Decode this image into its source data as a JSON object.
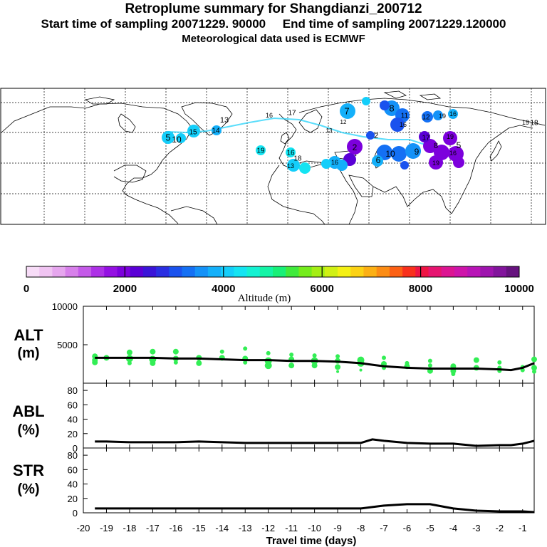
{
  "header": {
    "title": "Retroplume summary for Shangdianzi_200712",
    "sampling": "Start time of sampling 20071229. 90000     End time of sampling 20071229.120000",
    "met": "Meteorological data used is ECMWF"
  },
  "colors": {
    "scale": [
      "#f7dcf7",
      "#f0c4f2",
      "#e6a6ee",
      "#d780ea",
      "#c45ae8",
      "#ad30e6",
      "#9410e2",
      "#7c00dc",
      "#5a00d6",
      "#3a14d8",
      "#2a2ee2",
      "#1a52ee",
      "#1470f4",
      "#1492f8",
      "#14b0fa",
      "#14cefa",
      "#14e4f2",
      "#14f2d2",
      "#14f4a6",
      "#18f078",
      "#40ea3c",
      "#74ec1c",
      "#a4ee14",
      "#d0f014",
      "#f4f014",
      "#fcd214",
      "#fcb014",
      "#fc8c14",
      "#fc6014",
      "#f8301c",
      "#ee1444",
      "#e61470",
      "#dc1492",
      "#ce14aa",
      "#b814b6",
      "#9e14ae",
      "#82149c",
      "#66127e"
    ],
    "trace": "#000000",
    "dots": "#33ee55"
  },
  "colorbar": {
    "ticks": [
      "0",
      "2000",
      "4000",
      "6000",
      "8000",
      "10000"
    ],
    "label": "Altitude (m)"
  },
  "map": {
    "labels": [
      {
        "t": "7",
        "x": -10.5,
        "y": 20,
        "s": 13,
        "c": "#14cefa"
      },
      {
        "t": "8",
        "x": -5,
        "y": 20,
        "s": 13,
        "c": "#1470f4"
      },
      {
        "t": "9",
        "x": -3,
        "y": 17,
        "s": 12,
        "c": "#5a00d6"
      },
      {
        "t": "10",
        "x": -6,
        "y": 19,
        "s": 12,
        "c": "#1a52ee"
      },
      {
        "t": "11",
        "x": -6.5,
        "y": 17,
        "s": 10,
        "c": "#1470f4"
      },
      {
        "t": "12",
        "x": -5.5,
        "y": 17,
        "s": 10,
        "c": "#1492f8"
      },
      {
        "t": "13",
        "x": -6.3,
        "y": 13,
        "s": 11,
        "c": "#14b0fa"
      },
      {
        "t": "14",
        "x": -7.2,
        "y": 12,
        "s": 10,
        "c": "#14cefa"
      },
      {
        "t": "15",
        "x": -8.6,
        "y": 13,
        "s": 10,
        "c": "#14cefa"
      },
      {
        "t": "16",
        "x": -8.2,
        "y": 12,
        "s": 10,
        "c": "#14cefa"
      },
      {
        "t": "17",
        "x": -9.4,
        "y": 13,
        "s": 10,
        "c": "#14b0fa"
      },
      {
        "t": "18",
        "x": -10.2,
        "y": 12,
        "s": 10,
        "c": "#14cefa"
      },
      {
        "t": "19",
        "x": -11,
        "y": 13,
        "s": 10,
        "c": "#14e4f2"
      },
      {
        "t": "16",
        "x": -12,
        "y": 11,
        "s": 9,
        "c": "#14e4f2"
      },
      {
        "t": "13",
        "x": -8.5,
        "y": 11,
        "s": 8,
        "c": "#14b0fa"
      },
      {
        "t": "12",
        "x": -9.2,
        "y": 10,
        "s": 8,
        "c": "#14cefa"
      },
      {
        "t": "13",
        "x": -15.5,
        "y": 13,
        "s": 9,
        "c": "#14cefa"
      },
      {
        "t": "16",
        "x": -13.5,
        "y": 12,
        "s": 9,
        "c": "#14cefa"
      },
      {
        "t": "17",
        "x": -7.5,
        "y": 15,
        "s": 10,
        "c": "#14e4f2"
      },
      {
        "t": "19",
        "x": -12.5,
        "y": 13,
        "s": 9,
        "c": "#14cefa"
      },
      {
        "t": "16",
        "x": -5.3,
        "y": 12,
        "s": 9,
        "c": "#14b0fa"
      },
      {
        "t": "19",
        "x": -4.5,
        "y": 12,
        "s": 9,
        "c": "#14b0fa"
      },
      {
        "t": "5",
        "x": -3.2,
        "y": 15,
        "s": 12,
        "c": "#7c00dc"
      },
      {
        "t": "2",
        "x": -2.2,
        "y": 17,
        "s": 12,
        "c": "#7c00dc"
      },
      {
        "t": "6",
        "x": -1.2,
        "y": 18,
        "s": 12,
        "c": "#5a00d6"
      },
      {
        "t": "8",
        "x": -1.8,
        "y": 16,
        "s": 11,
        "c": "#7c00dc"
      },
      {
        "t": "2",
        "x": -0.8,
        "y": 16,
        "s": 11,
        "c": "#7c00dc"
      },
      {
        "t": "5",
        "x": -6,
        "y": 19,
        "s": 13,
        "c": "#1470f4"
      },
      {
        "t": "10",
        "x": -4,
        "y": 17,
        "s": 12,
        "c": "#1470f4"
      },
      {
        "t": "19",
        "x": -6.8,
        "y": 14,
        "s": 9,
        "c": "#14b0fa"
      },
      {
        "t": "18",
        "x": -2.2,
        "y": 16,
        "s": 10,
        "c": "#1a52ee"
      },
      {
        "t": "16",
        "x": -16,
        "y": 19,
        "s": 9,
        "c": "#14cefa"
      },
      {
        "t": "19",
        "x": -15.8,
        "y": 17,
        "s": 9,
        "c": "#14cefa"
      },
      {
        "t": "16",
        "x": -4.6,
        "y": 15,
        "s": 9,
        "c": "#14b0fa"
      }
    ]
  },
  "panels": {
    "alt": {
      "label1": "ALT",
      "label2": "(m)"
    },
    "abl": {
      "label1": "ABL",
      "label2": "(%)"
    },
    "str": {
      "label1": "STR",
      "label2": "(%)"
    }
  },
  "chart_data": {
    "type": "line",
    "title": "Retroplume summary for Shangdianzi_200712",
    "xlabel": "Travel time (days)",
    "xlim": [
      -20,
      -0.5
    ],
    "x_ticks": [
      -20,
      -19,
      -18,
      -17,
      -16,
      -15,
      -14,
      -13,
      -12,
      -11,
      -10,
      -9,
      -8,
      -7,
      -6,
      -5,
      -4,
      -3,
      -2,
      -1
    ],
    "x_tick_labels": [
      "-20",
      "-19",
      "-18",
      "-17",
      "-16",
      "-15",
      "-14",
      "-13",
      "-12",
      "-11",
      "-10",
      "-9",
      "-8",
      "-7",
      "-6",
      "-5",
      "-4",
      "-3",
      "-2",
      "-1"
    ],
    "x": [
      -19.5,
      -19,
      -18,
      -17,
      -16,
      -15,
      -14,
      -13,
      -12,
      -11,
      -10,
      -9,
      -8,
      -7.5,
      -7,
      -6,
      -5,
      -4,
      -3,
      -2,
      -1.5,
      -1,
      -0.5
    ],
    "alt": {
      "ylabel": "ALT (m)",
      "ylim": [
        0,
        10000
      ],
      "y_ticks": [
        0,
        5000,
        10000
      ],
      "y_tick_labels": [
        "",
        "5000",
        "10000"
      ],
      "values": [
        3300,
        3300,
        3300,
        3300,
        3200,
        3200,
        3100,
        3000,
        3000,
        2900,
        2900,
        2800,
        2600,
        2400,
        2200,
        2000,
        1900,
        1900,
        1900,
        1800,
        1700,
        2000,
        2600
      ]
    },
    "abl": {
      "ylabel": "ABL (%)",
      "ylim": [
        0,
        90
      ],
      "y_ticks": [
        0,
        20,
        40,
        60,
        80
      ],
      "y_tick_labels": [
        "0",
        "20",
        "40",
        "60",
        "80"
      ],
      "values": [
        9,
        9,
        8,
        8,
        8,
        9,
        8,
        7,
        7,
        7,
        7,
        7,
        7,
        12,
        10,
        7,
        6,
        6,
        3,
        4,
        4,
        6,
        10
      ]
    },
    "str": {
      "ylabel": "STR (%)",
      "ylim": [
        0,
        90
      ],
      "y_ticks": [
        0,
        20,
        40,
        60,
        80
      ],
      "y_tick_labels": [
        "0",
        "20",
        "40",
        "60",
        "80"
      ],
      "values": [
        6,
        6,
        6,
        6,
        6,
        6,
        6,
        6,
        6,
        6,
        6,
        6,
        6,
        8,
        10,
        12,
        12,
        6,
        3,
        2,
        2,
        2,
        1
      ]
    },
    "alt_dots": [
      {
        "x": -19.5,
        "y": 3000,
        "r": 4
      },
      {
        "x": -19.5,
        "y": 3500,
        "r": 4
      },
      {
        "x": -19.5,
        "y": 2700,
        "r": 4
      },
      {
        "x": -19,
        "y": 3300,
        "r": 4
      },
      {
        "x": -18,
        "y": 3200,
        "r": 5
      },
      {
        "x": -18,
        "y": 4000,
        "r": 4
      },
      {
        "x": -18,
        "y": 2600,
        "r": 3
      },
      {
        "x": -17,
        "y": 3100,
        "r": 5
      },
      {
        "x": -17,
        "y": 4100,
        "r": 4
      },
      {
        "x": -17,
        "y": 2600,
        "r": 4
      },
      {
        "x": -16,
        "y": 3200,
        "r": 4
      },
      {
        "x": -16,
        "y": 4100,
        "r": 4
      },
      {
        "x": -16,
        "y": 2700,
        "r": 3
      },
      {
        "x": -15,
        "y": 3300,
        "r": 4
      },
      {
        "x": -15,
        "y": 2600,
        "r": 4
      },
      {
        "x": -14,
        "y": 3300,
        "r": 4
      },
      {
        "x": -14,
        "y": 4100,
        "r": 3
      },
      {
        "x": -13,
        "y": 3200,
        "r": 4
      },
      {
        "x": -13,
        "y": 4500,
        "r": 3
      },
      {
        "x": -13,
        "y": 2700,
        "r": 3
      },
      {
        "x": -12,
        "y": 2300,
        "r": 5
      },
      {
        "x": -12,
        "y": 2900,
        "r": 5
      },
      {
        "x": -12,
        "y": 3900,
        "r": 3
      },
      {
        "x": -11,
        "y": 3100,
        "r": 4
      },
      {
        "x": -11,
        "y": 2300,
        "r": 4
      },
      {
        "x": -11,
        "y": 3700,
        "r": 3
      },
      {
        "x": -10,
        "y": 2900,
        "r": 5
      },
      {
        "x": -10,
        "y": 2300,
        "r": 4
      },
      {
        "x": -10,
        "y": 3600,
        "r": 3
      },
      {
        "x": -9,
        "y": 2100,
        "r": 4
      },
      {
        "x": -9,
        "y": 2900,
        "r": 4
      },
      {
        "x": -9,
        "y": 3500,
        "r": 3
      },
      {
        "x": -9,
        "y": 1500,
        "r": 2
      },
      {
        "x": -8,
        "y": 2600,
        "r": 5
      },
      {
        "x": -8,
        "y": 3000,
        "r": 5
      },
      {
        "x": -8,
        "y": 1700,
        "r": 2
      },
      {
        "x": -7,
        "y": 2500,
        "r": 4
      },
      {
        "x": -7,
        "y": 3300,
        "r": 3
      },
      {
        "x": -7,
        "y": 2000,
        "r": 3
      },
      {
        "x": -6,
        "y": 2200,
        "r": 4
      },
      {
        "x": -6,
        "y": 2600,
        "r": 3
      },
      {
        "x": -5,
        "y": 1600,
        "r": 4
      },
      {
        "x": -5,
        "y": 2300,
        "r": 3
      },
      {
        "x": -5,
        "y": 2900,
        "r": 3
      },
      {
        "x": -4,
        "y": 1600,
        "r": 4
      },
      {
        "x": -4,
        "y": 2200,
        "r": 4
      },
      {
        "x": -4,
        "y": 1200,
        "r": 3
      },
      {
        "x": -3,
        "y": 2000,
        "r": 4
      },
      {
        "x": -3,
        "y": 3000,
        "r": 4
      },
      {
        "x": -2,
        "y": 2000,
        "r": 3
      },
      {
        "x": -2,
        "y": 2700,
        "r": 3
      },
      {
        "x": -2,
        "y": 1600,
        "r": 3
      },
      {
        "x": -1,
        "y": 1700,
        "r": 3
      },
      {
        "x": -1,
        "y": 2100,
        "r": 3
      },
      {
        "x": -0.5,
        "y": 3100,
        "r": 4
      },
      {
        "x": -0.5,
        "y": 2000,
        "r": 4
      },
      {
        "x": -0.5,
        "y": 1500,
        "r": 3
      }
    ]
  }
}
